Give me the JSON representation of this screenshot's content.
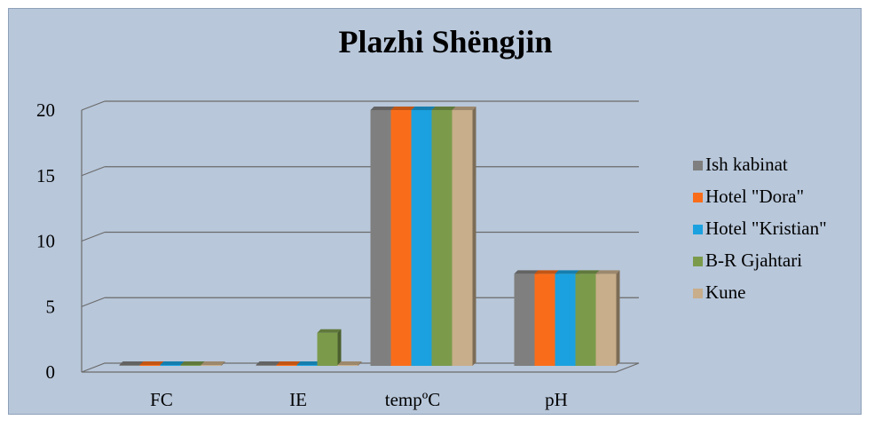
{
  "chart_data": {
    "type": "bar",
    "title": "Plazhi Shëngjin",
    "categories": [
      "FC",
      "IE",
      "tempºC",
      "pH"
    ],
    "series": [
      {
        "name": "Ish kabinat",
        "color": "#7f7f7f",
        "values": [
          0,
          0,
          20,
          7.5
        ]
      },
      {
        "name": "Hotel \"Dora\"",
        "color": "#f96d1a",
        "values": [
          0,
          0,
          20,
          7.5
        ]
      },
      {
        "name": "Hotel \"Kristian\"",
        "color": "#1ba1df",
        "values": [
          0,
          0,
          20,
          7.5
        ]
      },
      {
        "name": "B-R Gjahtari",
        "color": "#7b9b4b",
        "values": [
          0,
          3,
          20,
          7.5
        ]
      },
      {
        "name": "Kune",
        "color": "#c8ae8a",
        "values": [
          0,
          0,
          20,
          7.5
        ]
      }
    ],
    "y_ticks": [
      "0",
      "5",
      "10",
      "15",
      "20"
    ],
    "ylim": [
      0,
      20
    ],
    "grid": true,
    "legend": "right"
  }
}
